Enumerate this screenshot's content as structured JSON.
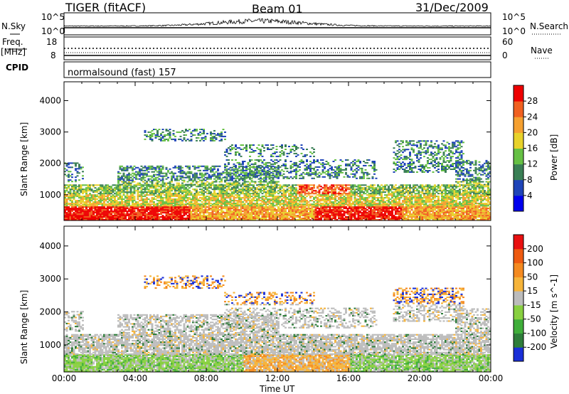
{
  "header": {
    "title": "TIGER (fitACF)",
    "beam": "Beam 01",
    "date": "31/Dec/2009"
  },
  "strip": {
    "nsky_label": "N.Sky",
    "nsearch_label": "N.Search",
    "freq_label": "Freq.",
    "freq_unit": "[MHz]",
    "nave_label": "Nave",
    "cpid_label": "CPID",
    "cpid_value": "normalsound (fast) 157",
    "noise_tick_high": "10^5",
    "noise_tick_low": "10^0",
    "freq_tick_high": "18",
    "freq_tick_low": "8",
    "nave_tick_high": "60",
    "nave_tick_low": "0"
  },
  "chart_data": [
    {
      "type": "heatmap",
      "name": "power",
      "ylabel": "Slant Range [km]",
      "y_ticks": [
        "1000",
        "2000",
        "3000",
        "4000"
      ],
      "ylim": [
        180,
        4600
      ],
      "colorbar_label": "Power [dB]",
      "colorbar_ticks": [
        "4",
        "8",
        "12",
        "16",
        "20",
        "24",
        "28"
      ],
      "colors": [
        "#0000ee",
        "#1f44b8",
        "#3a7f55",
        "#66c044",
        "#e8d22a",
        "#f5a030",
        "#f06020",
        "#ee0000"
      ]
    },
    {
      "type": "heatmap",
      "name": "velocity",
      "ylabel": "Slant Range [km]",
      "y_ticks": [
        "1000",
        "2000",
        "3000",
        "4000"
      ],
      "ylim": [
        180,
        4600
      ],
      "xlabel": "Time UT",
      "x_ticks": [
        "00:00",
        "04:00",
        "08:00",
        "12:00",
        "16:00",
        "20:00",
        "00:00"
      ],
      "colorbar_label": "Velocity [m s^-1]",
      "colorbar_ticks": [
        "200",
        "100",
        "50",
        "15",
        "-15",
        "-50",
        "-100",
        "-200"
      ],
      "colors": [
        "#1a2fd8",
        "#2e7d3a",
        "#3fae3a",
        "#88d040",
        "#bcbcbc",
        "#f6b43a",
        "#f48a20",
        "#ee5a10",
        "#e81010"
      ]
    }
  ]
}
